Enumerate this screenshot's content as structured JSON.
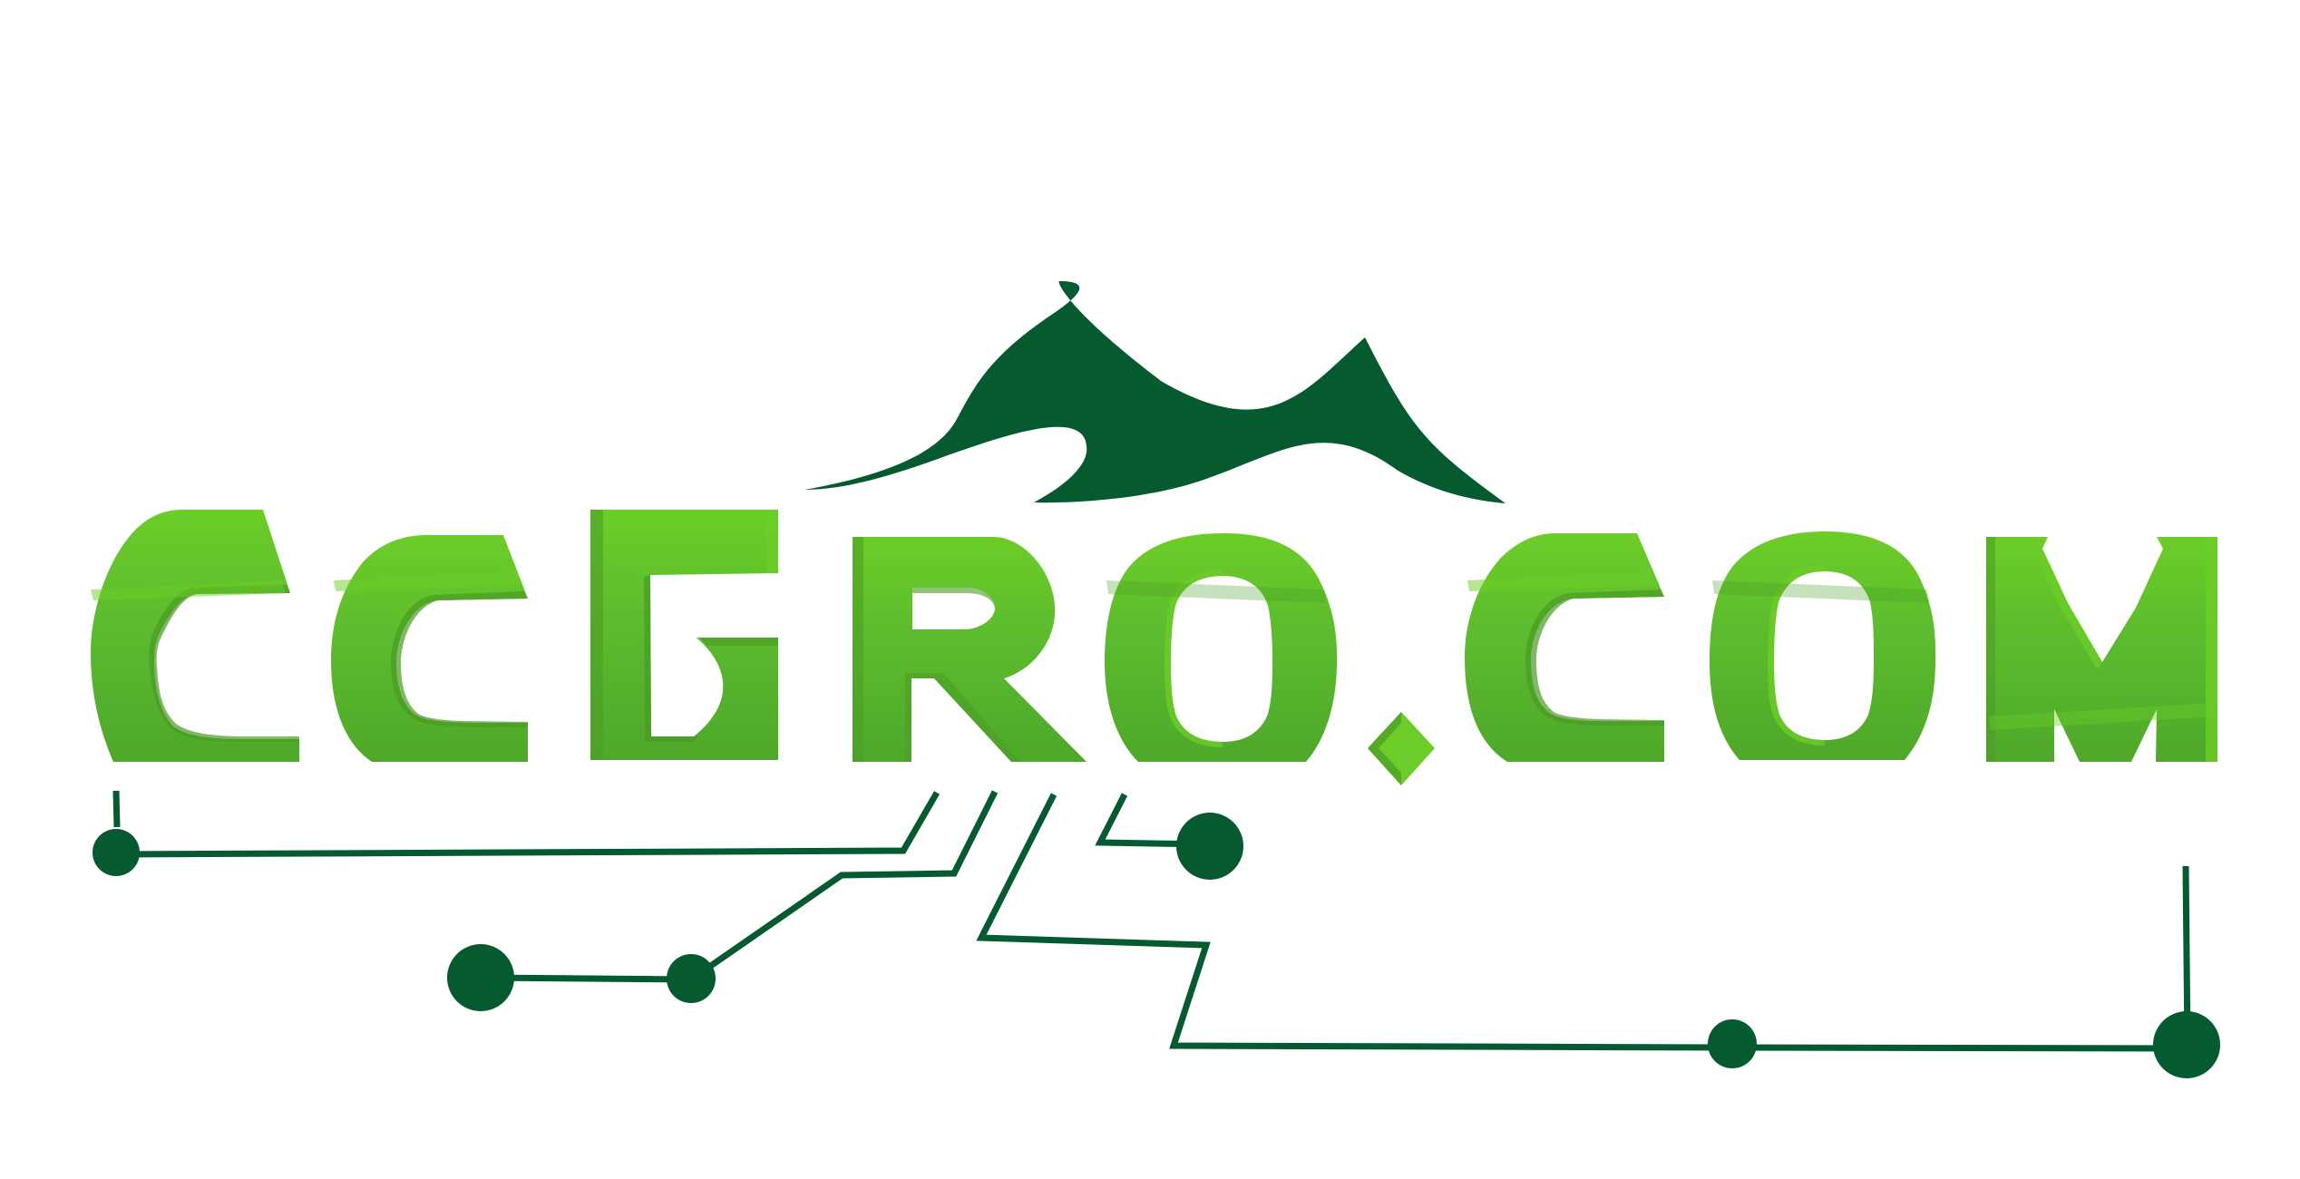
{
  "logo": {
    "wordmark": "CCGRO.COM",
    "colors": {
      "mountain": "#055a30",
      "letter_main": "#5cbb2e",
      "letter_light": "#6ccd28",
      "letter_dark": "#4a9a25",
      "circuit": "#055a30",
      "background": "#ffffff"
    },
    "icons": [
      "mountain-icon",
      "circuit-traces"
    ]
  }
}
